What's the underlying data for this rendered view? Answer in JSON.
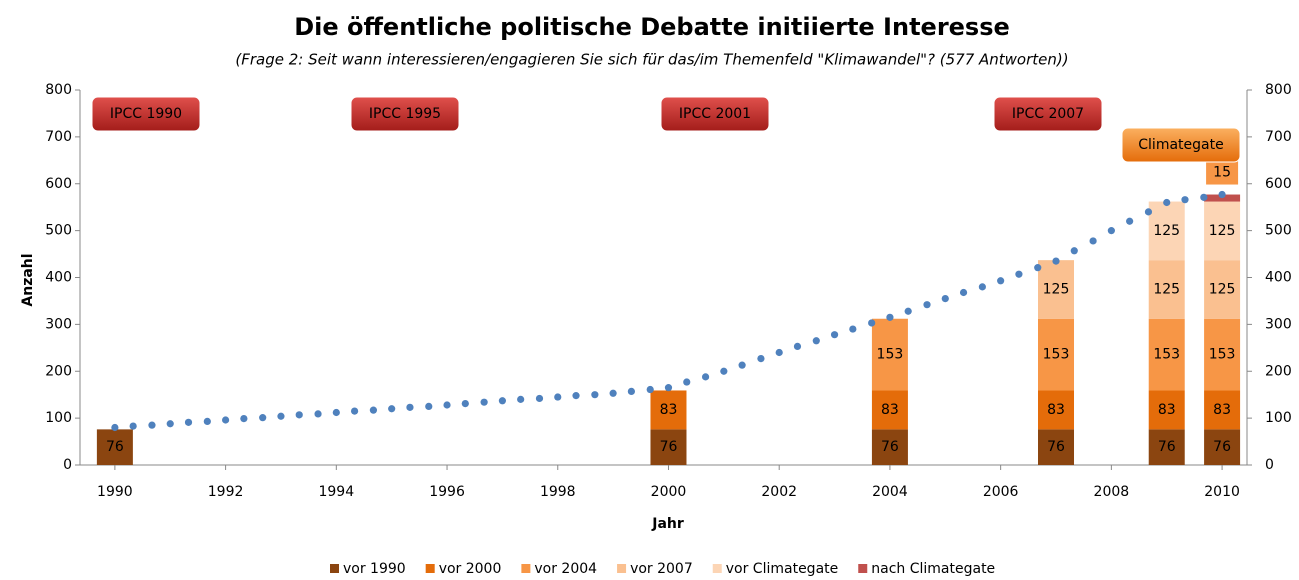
{
  "chart_data": {
    "type": "bar",
    "title": "Die öffentliche politische Debatte initiierte Interesse",
    "subtitle": "(Frage 2: Seit wann interessieren/engagieren Sie sich für das/im Themenfeld \"Klimawandel\"? (577 Antworten))",
    "x_label": "Jahr",
    "y_label": "Anzahl",
    "x": [
      1990,
      2000,
      2004,
      2007,
      2009,
      2010
    ],
    "xlim": [
      1989.37,
      2010.45
    ],
    "xticks": [
      1990,
      1992,
      1994,
      1996,
      1998,
      2000,
      2002,
      2004,
      2006,
      2008,
      2010
    ],
    "ylim": [
      0,
      800
    ],
    "yticks": [
      0,
      100,
      200,
      300,
      400,
      500,
      600,
      700,
      800
    ],
    "y2lim": [
      0,
      800
    ],
    "y2ticks": [
      0,
      100,
      200,
      300,
      400,
      500,
      600,
      700,
      800
    ],
    "series": [
      {
        "name": "vor 1990",
        "color": "#8b4510",
        "values": [
          76,
          76,
          76,
          76,
          76,
          76
        ]
      },
      {
        "name": "vor 2000",
        "color": "#e46c0a",
        "values": [
          null,
          83,
          83,
          83,
          83,
          83
        ]
      },
      {
        "name": "vor 2004",
        "color": "#f79646",
        "values": [
          null,
          null,
          153,
          153,
          153,
          153
        ]
      },
      {
        "name": "vor 2007",
        "color": "#fac090",
        "values": [
          null,
          null,
          null,
          125,
          125,
          125
        ]
      },
      {
        "name": "vor Climategate",
        "color": "#fcd5b5",
        "values": [
          null,
          null,
          null,
          null,
          125,
          125
        ]
      },
      {
        "name": "nach Climategate",
        "color": "#c0504d",
        "values": [
          null,
          null,
          null,
          null,
          null,
          15
        ]
      }
    ],
    "dots": {
      "color": "#4f81bd",
      "x": [
        1990,
        1990.33,
        1990.67,
        1991,
        1991.33,
        1991.67,
        1992,
        1992.33,
        1992.67,
        1993,
        1993.33,
        1993.67,
        1994,
        1994.33,
        1994.67,
        1995,
        1995.33,
        1995.67,
        1996,
        1996.33,
        1996.67,
        1997,
        1997.33,
        1997.67,
        1998,
        1998.33,
        1998.67,
        1999,
        1999.33,
        1999.67,
        2000,
        2000.33,
        2000.67,
        2001,
        2001.33,
        2001.67,
        2002,
        2002.33,
        2002.67,
        2003,
        2003.33,
        2003.67,
        2004,
        2004.33,
        2004.67,
        2005,
        2005.33,
        2005.67,
        2006,
        2006.33,
        2006.67,
        2007,
        2007.33,
        2007.67,
        2008,
        2008.33,
        2008.67,
        2009,
        2009.33,
        2009.67,
        2010
      ],
      "values": [
        80,
        83,
        85,
        88,
        91,
        93,
        96,
        99,
        101,
        104,
        107,
        109,
        112,
        115,
        117,
        120,
        123,
        125,
        128,
        131,
        134,
        137,
        140,
        142,
        145,
        148,
        150,
        153,
        157,
        161,
        165,
        177,
        188,
        200,
        213,
        227,
        240,
        253,
        265,
        278,
        290,
        303,
        315,
        328,
        342,
        355,
        368,
        380,
        393,
        407,
        421,
        435,
        457,
        478,
        500,
        520,
        540,
        560,
        566,
        571,
        577
      ]
    },
    "annotations": [
      "IPCC 1990",
      "IPCC 1995",
      "IPCC 2001",
      "IPCC 2007",
      "Climategate"
    ]
  }
}
